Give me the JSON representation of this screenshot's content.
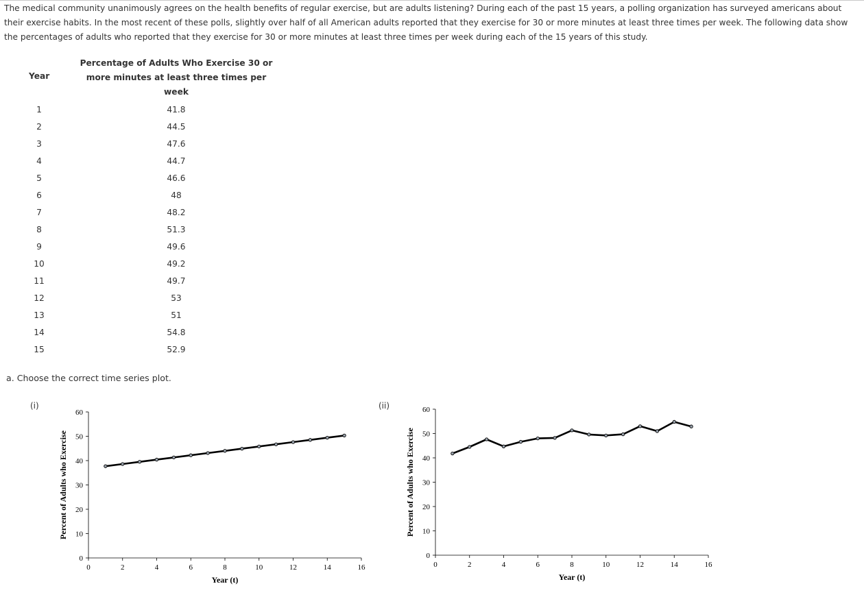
{
  "intro_text": "The medical community unanimously agrees on the health benefits of regular exercise, but are adults listening? During each of the past 15 years, a polling organization has surveyed americans about their exercise habits. In the most recent of these polls, slightly over half of all American adults reported that they exercise for 30 or more minutes at least three times per week. The following data show the percentages of adults who reported that they exercise for 30 or more minutes at least three times per week during each of the 15 years of this study.",
  "table": {
    "header_year": "Year",
    "header_pct_lines": [
      "Percentage of Adults Who Exercise 30 or",
      "more minutes at least three times per",
      "week"
    ],
    "years": [
      "1",
      "2",
      "3",
      "4",
      "5",
      "6",
      "7",
      "8",
      "9",
      "10",
      "11",
      "12",
      "13",
      "14",
      "15"
    ],
    "percentages": [
      "41.8",
      "44.5",
      "47.6",
      "44.7",
      "46.6",
      "48",
      "48.2",
      "51.3",
      "49.6",
      "49.2",
      "49.7",
      "53",
      "51",
      "54.8",
      "52.9"
    ]
  },
  "question": "a. Choose the correct time series plot.",
  "chart_data": [
    {
      "type": "line",
      "option_label": "(i)",
      "xlabel": "Year (t)",
      "ylabel": "Percent of Adults who Exercise",
      "xlim": [
        0,
        16
      ],
      "ylim": [
        0,
        60
      ],
      "xticks": [
        0,
        2,
        4,
        6,
        8,
        10,
        12,
        14,
        16
      ],
      "yticks": [
        0,
        10,
        20,
        30,
        40,
        50,
        60
      ],
      "x": [
        1,
        2,
        3,
        4,
        5,
        6,
        7,
        8,
        9,
        10,
        11,
        12,
        13,
        14,
        15
      ],
      "y": [
        37.7,
        38.6,
        39.5,
        40.4,
        41.3,
        42.2,
        43.1,
        44.0,
        44.9,
        45.8,
        46.7,
        47.6,
        48.5,
        49.4,
        50.3
      ]
    },
    {
      "type": "line",
      "option_label": "(ii)",
      "xlabel": "Year (t)",
      "ylabel": "Percent of Adults who Exercise",
      "xlim": [
        0,
        16
      ],
      "ylim": [
        0,
        60
      ],
      "xticks": [
        0,
        2,
        4,
        6,
        8,
        10,
        12,
        14,
        16
      ],
      "yticks": [
        0,
        10,
        20,
        30,
        40,
        50,
        60
      ],
      "x": [
        1,
        2,
        3,
        4,
        5,
        6,
        7,
        8,
        9,
        10,
        11,
        12,
        13,
        14,
        15
      ],
      "y": [
        41.8,
        44.5,
        47.6,
        44.7,
        46.6,
        48,
        48.2,
        51.3,
        49.6,
        49.2,
        49.7,
        53,
        51,
        54.8,
        52.9
      ]
    }
  ]
}
